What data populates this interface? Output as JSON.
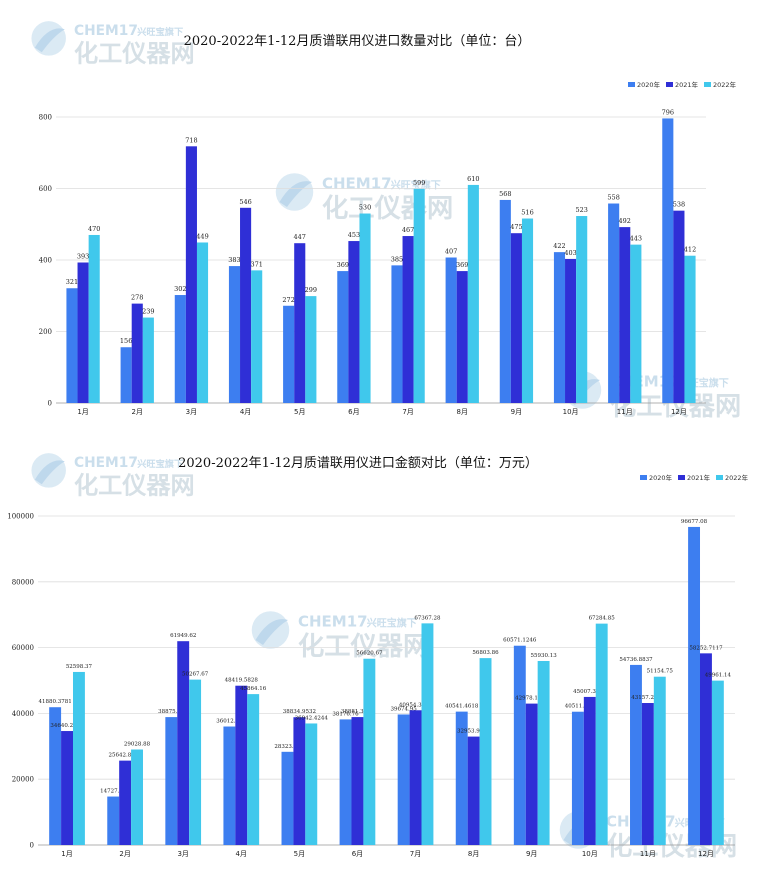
{
  "colors": {
    "s2020": "#3d7ef0",
    "s2021": "#2f2fd6",
    "s2022": "#40c8ec",
    "grid": "#dddddd",
    "axis": "#999999"
  },
  "watermark": {
    "brand": "CHEM17",
    "tagline": "兴旺宝旗下",
    "name": "化工仪器网"
  },
  "chart_data": [
    {
      "type": "bar",
      "title": "2020-2022年1-12月质谱联用仪进口数量对比（单位：台）",
      "categories": [
        "1月",
        "2月",
        "3月",
        "4月",
        "5月",
        "6月",
        "7月",
        "8月",
        "9月",
        "10月",
        "11月",
        "12月"
      ],
      "ylim": [
        0,
        800
      ],
      "yticks": [
        0,
        200,
        400,
        600,
        800
      ],
      "ytick_labels": [
        "0",
        "200",
        "400",
        "600",
        "800"
      ],
      "legend_position": "top-right",
      "series": [
        {
          "name": "2020年",
          "values": [
            321,
            156,
            302,
            383,
            272,
            369,
            385,
            407,
            568,
            422,
            558,
            796
          ],
          "labels": [
            "321",
            "156",
            "302",
            "383",
            "272",
            "369",
            "385",
            "407",
            "568",
            "422",
            "558",
            "796"
          ]
        },
        {
          "name": "2021年",
          "values": [
            393,
            278,
            718,
            546,
            447,
            453,
            467,
            369,
            475,
            403,
            492,
            538
          ],
          "labels": [
            "393",
            "278",
            "718",
            "546",
            "447",
            "453",
            "467",
            "369",
            "475",
            "403",
            "492",
            "538"
          ]
        },
        {
          "name": "2022年",
          "values": [
            470,
            239,
            449,
            371,
            299,
            530,
            599,
            610,
            516,
            523,
            443,
            412
          ],
          "labels": [
            "470",
            "239",
            "449",
            "371",
            "299",
            "530",
            "599",
            "610",
            "516",
            "523",
            "443",
            "412"
          ]
        }
      ]
    },
    {
      "type": "bar",
      "title": "2020-2022年1-12月质谱联用仪进口金额对比（单位：万元）",
      "categories": [
        "1月",
        "2月",
        "3月",
        "4月",
        "5月",
        "6月",
        "7月",
        "8月",
        "9月",
        "10月",
        "11月",
        "12月"
      ],
      "ylim": [
        0,
        100000
      ],
      "yticks": [
        0,
        20000,
        40000,
        60000,
        80000,
        100000
      ],
      "ytick_labels": [
        "0",
        "20000",
        "40000",
        "60000",
        "80000",
        "100000"
      ],
      "legend_position": "top-right",
      "series": [
        {
          "name": "2020年",
          "values": [
            41880.3781,
            14727.23,
            38875.07,
            36012.39,
            28323.64,
            38176.76,
            39674.95,
            40541.4618,
            60571.1246,
            40511.31,
            54736.8837,
            96677.08
          ],
          "labels": [
            "41880.3781",
            "14727.23",
            "38875.07",
            "36012.39",
            "28323.64",
            "38176.76",
            "39674.95",
            "40541.4618",
            "60571.1246",
            "40511.31",
            "54736.8837",
            "96677.08"
          ]
        },
        {
          "name": "2021年",
          "values": [
            34640.2063,
            25642.8374,
            61949.62,
            48419.5828,
            38834.9532,
            38881.3068,
            40954.3327,
            32953.9952,
            42978.1862,
            45007.3443,
            43157.2958,
            58252.7117
          ],
          "labels": [
            "34640.2063",
            "25642.8374",
            "61949.62",
            "48419.5828",
            "38834.9532",
            "38881.3068",
            "40954.3327",
            "32953.9952",
            "42978.1862",
            "45007.3443",
            "43157.2958",
            "58252.7117"
          ]
        },
        {
          "name": "2022年",
          "values": [
            52598.37,
            29028.88,
            50267.67,
            45864.16,
            36942.4244,
            56620.67,
            67367.28,
            56803.86,
            55930.13,
            67284.85,
            51154.75,
            49961.14
          ],
          "labels": [
            "52598.37",
            "29028.88",
            "50267.67",
            "45864.16",
            "36942.4244",
            "56620.67",
            "67367.28",
            "56803.86",
            "55930.13",
            "67284.85",
            "51154.75",
            "49961.14"
          ]
        }
      ]
    }
  ]
}
